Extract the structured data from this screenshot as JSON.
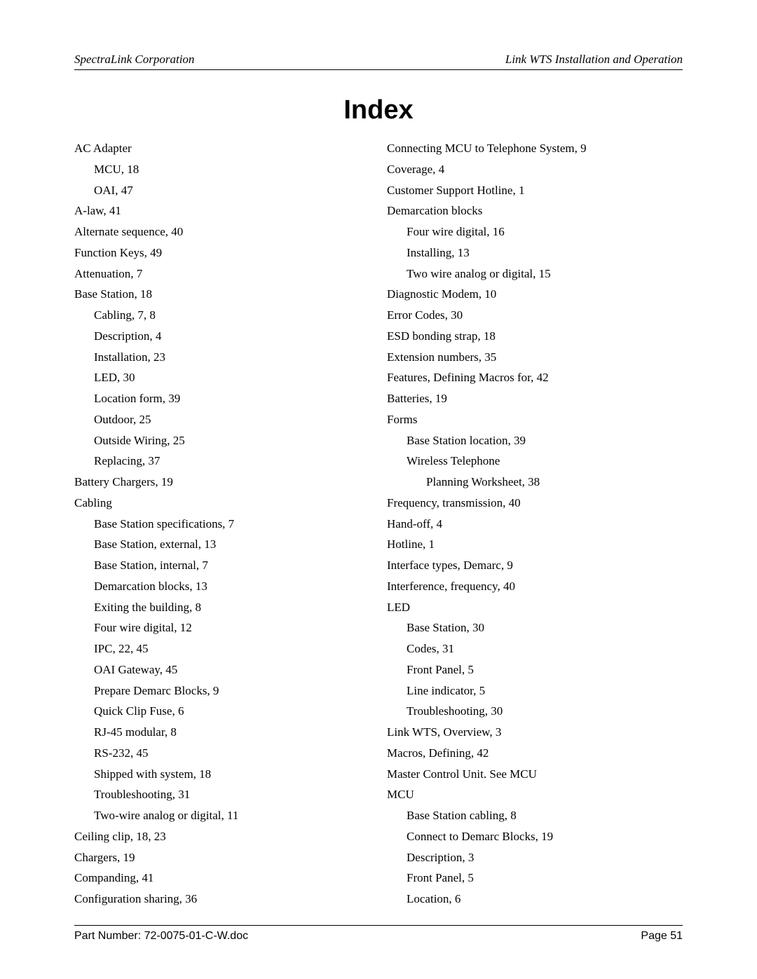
{
  "header": {
    "left": "SpectraLink Corporation",
    "right": "Link WTS Installation and Operation"
  },
  "title": "Index",
  "col1": [
    {
      "t": "AC Adapter",
      "l": 0
    },
    {
      "t": "MCU, 18",
      "l": 1
    },
    {
      "t": "OAI, 47",
      "l": 1
    },
    {
      "t": "A-law, 41",
      "l": 0
    },
    {
      "t": "Alternate sequence, 40",
      "l": 0
    },
    {
      "t": "Function Keys, 49",
      "l": 0
    },
    {
      "t": "Attenuation, 7",
      "l": 0
    },
    {
      "t": "Base Station, 18",
      "l": 0
    },
    {
      "t": "Cabling, 7, 8",
      "l": 1
    },
    {
      "t": "Description, 4",
      "l": 1
    },
    {
      "t": "Installation, 23",
      "l": 1
    },
    {
      "t": "LED, 30",
      "l": 1
    },
    {
      "t": "Location form, 39",
      "l": 1
    },
    {
      "t": "Outdoor, 25",
      "l": 1
    },
    {
      "t": "Outside Wiring, 25",
      "l": 1
    },
    {
      "t": "Replacing, 37",
      "l": 1
    },
    {
      "t": "Battery Chargers, 19",
      "l": 0
    },
    {
      "t": "Cabling",
      "l": 0
    },
    {
      "t": "Base Station specifications, 7",
      "l": 1
    },
    {
      "t": "Base Station, external, 13",
      "l": 1
    },
    {
      "t": "Base Station, internal, 7",
      "l": 1
    },
    {
      "t": "Demarcation blocks, 13",
      "l": 1
    },
    {
      "t": "Exiting the building, 8",
      "l": 1
    },
    {
      "t": "Four wire digital, 12",
      "l": 1
    },
    {
      "t": "IPC, 22, 45",
      "l": 1
    },
    {
      "t": "OAI Gateway, 45",
      "l": 1
    },
    {
      "t": "Prepare Demarc Blocks, 9",
      "l": 1
    },
    {
      "t": "Quick Clip Fuse, 6",
      "l": 1
    },
    {
      "t": "RJ-45 modular, 8",
      "l": 1
    },
    {
      "t": "RS-232, 45",
      "l": 1
    },
    {
      "t": "Shipped with system, 18",
      "l": 1
    },
    {
      "t": "Troubleshooting, 31",
      "l": 1
    },
    {
      "t": "Two-wire analog or digital, 11",
      "l": 1
    },
    {
      "t": "Ceiling clip, 18, 23",
      "l": 0
    },
    {
      "t": "Chargers, 19",
      "l": 0
    },
    {
      "t": "Companding, 41",
      "l": 0
    },
    {
      "t": "Configuration sharing, 36",
      "l": 0
    }
  ],
  "col2": [
    {
      "t": "Connecting MCU to Telephone System, 9",
      "l": 0
    },
    {
      "t": "Coverage, 4",
      "l": 0
    },
    {
      "t": "Customer Support Hotline, 1",
      "l": 0
    },
    {
      "t": "Demarcation blocks",
      "l": 0
    },
    {
      "t": "Four wire digital, 16",
      "l": 1
    },
    {
      "t": "Installing, 13",
      "l": 1
    },
    {
      "t": "Two wire analog or digital, 15",
      "l": 1
    },
    {
      "t": "Diagnostic Modem, 10",
      "l": 0
    },
    {
      "t": "Error Codes, 30",
      "l": 0
    },
    {
      "t": "ESD bonding strap, 18",
      "l": 0
    },
    {
      "t": "Extension numbers, 35",
      "l": 0
    },
    {
      "t": "Features, Defining Macros for, 42",
      "l": 0
    },
    {
      "t": "Batteries, 19",
      "l": 0
    },
    {
      "t": "Forms",
      "l": 0
    },
    {
      "t": "Base Station location, 39",
      "l": 1
    },
    {
      "t": "Wireless Telephone",
      "l": 1
    },
    {
      "t": "Planning Worksheet, 38",
      "l": 2
    },
    {
      "t": "Frequency, transmission, 40",
      "l": 0
    },
    {
      "t": "Hand-off, 4",
      "l": 0
    },
    {
      "t": "Hotline, 1",
      "l": 0
    },
    {
      "t": "Interface types, Demarc, 9",
      "l": 0
    },
    {
      "t": "Interference, frequency, 40",
      "l": 0
    },
    {
      "t": "LED",
      "l": 0
    },
    {
      "t": "Base Station, 30",
      "l": 1
    },
    {
      "t": "Codes, 31",
      "l": 1
    },
    {
      "t": "Front Panel, 5",
      "l": 1
    },
    {
      "t": "Line indicator, 5",
      "l": 1
    },
    {
      "t": "Troubleshooting, 30",
      "l": 1
    },
    {
      "t": "Link WTS, Overview, 3",
      "l": 0
    },
    {
      "t": "Macros, Defining, 42",
      "l": 0
    },
    {
      "t": "Master Control Unit. See  MCU",
      "l": 0
    },
    {
      "t": "MCU",
      "l": 0
    },
    {
      "t": "Base Station cabling, 8",
      "l": 1
    },
    {
      "t": "Connect to Demarc Blocks, 19",
      "l": 1
    },
    {
      "t": "Description, 3",
      "l": 1
    },
    {
      "t": "Front Panel, 5",
      "l": 1
    },
    {
      "t": "Location, 6",
      "l": 1
    }
  ],
  "footer": {
    "left": "Part Number: 72-0075-01-C-W.doc",
    "right": "Page 51"
  }
}
